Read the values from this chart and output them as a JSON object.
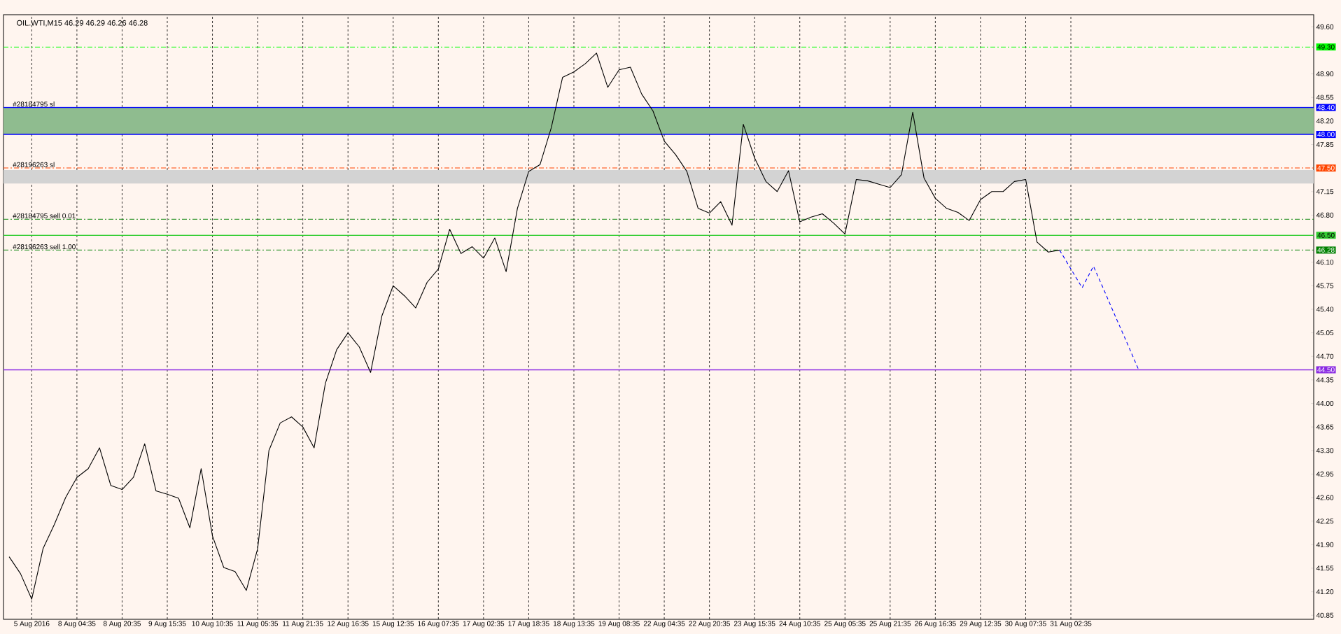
{
  "chart_data": {
    "type": "line",
    "title": "OIL.WTI,M15  46.29 46.29 46.26 46.28",
    "ylim": [
      40.79,
      49.78
    ],
    "grid": "x",
    "categories": [
      null,
      null,
      "5 Aug 2016",
      null,
      null,
      null,
      "8 Aug 04:35",
      null,
      null,
      null,
      "8 Aug 20:35",
      null,
      null,
      null,
      "9 Aug 15:35",
      null,
      null,
      null,
      "10 Aug 10:35",
      null,
      null,
      null,
      "11 Aug 05:35",
      null,
      null,
      null,
      "11 Aug 21:35",
      null,
      null,
      null,
      "12 Aug 16:35",
      null,
      null,
      null,
      "15 Aug 12:35",
      null,
      null,
      null,
      "16 Aug 07:35",
      null,
      null,
      null,
      "17 Aug 02:35",
      null,
      null,
      null,
      "17 Aug 18:35",
      null,
      null,
      null,
      "18 Aug 13:35",
      null,
      null,
      null,
      "19 Aug 08:35",
      null,
      null,
      null,
      "22 Aug 04:35",
      null,
      null,
      null,
      "22 Aug 20:35",
      null,
      null,
      null,
      "23 Aug 15:35",
      null,
      null,
      null,
      "24 Aug 10:35",
      null,
      null,
      null,
      "25 Aug 05:35",
      null,
      null,
      null,
      "25 Aug 21:35",
      null,
      null,
      null,
      "26 Aug 16:35",
      null,
      null,
      null,
      "29 Aug 12:35",
      null,
      null,
      null,
      "30 Aug 07:35",
      null,
      null,
      null,
      "31 Aug 02:35",
      null,
      null,
      null,
      null,
      null,
      null,
      null,
      null,
      null,
      null,
      null,
      null,
      null,
      null,
      null,
      null,
      null,
      null,
      null,
      null,
      null
    ],
    "yticks": [
      {
        "value": 40.85,
        "label": "40.85"
      },
      {
        "value": 41.2,
        "label": "41.20"
      },
      {
        "value": 41.55,
        "label": "41.55"
      },
      {
        "value": 41.9,
        "label": "41.90"
      },
      {
        "value": 42.25,
        "label": "42.25"
      },
      {
        "value": 42.6,
        "label": "42.60"
      },
      {
        "value": 42.95,
        "label": "42.95"
      },
      {
        "value": 43.3,
        "label": "43.30"
      },
      {
        "value": 43.65,
        "label": "43.65"
      },
      {
        "value": 44.0,
        "label": "44.00"
      },
      {
        "value": 44.35,
        "label": "44.35"
      },
      {
        "value": 44.5,
        "label": "44.50"
      },
      {
        "value": 44.7,
        "label": "44.70"
      },
      {
        "value": 45.05,
        "label": "45.05"
      },
      {
        "value": 45.4,
        "label": "45.40"
      },
      {
        "value": 45.75,
        "label": "45.75"
      },
      {
        "value": 46.1,
        "label": "46.10"
      },
      {
        "value": 46.28,
        "label": "46.28"
      },
      {
        "value": 46.5,
        "label": "46.50"
      },
      {
        "value": 46.8,
        "label": "46.80"
      },
      {
        "value": 47.15,
        "label": "47.15"
      },
      {
        "value": 47.5,
        "label": "47.50"
      },
      {
        "value": 47.85,
        "label": "47.85"
      },
      {
        "value": 48.0,
        "label": "48.00"
      },
      {
        "value": 48.2,
        "label": "48.20"
      },
      {
        "value": 48.4,
        "label": "48.40"
      },
      {
        "value": 48.55,
        "label": "48.55"
      },
      {
        "value": 48.9,
        "label": "48.90"
      },
      {
        "value": 49.3,
        "label": "49.30"
      },
      {
        "value": 49.6,
        "label": "49.60"
      }
    ],
    "bands": [
      {
        "axis": "y",
        "from": 48.0,
        "to": 48.4,
        "color": "#8fbc8f"
      },
      {
        "axis": "y",
        "from": 47.27,
        "to": 47.47,
        "color": "#d3d3d3"
      }
    ],
    "ref_lines": [
      {
        "axis": "y",
        "value": 49.3,
        "color": "#00ff00",
        "line_style": "dashed"
      },
      {
        "axis": "y",
        "value": 48.4,
        "label": "#28184795 sl",
        "color": "#0000ff",
        "line_style": "solid"
      },
      {
        "axis": "y",
        "value": 48.0,
        "color": "#0000ff",
        "line_style": "solid"
      },
      {
        "axis": "y",
        "value": 47.5,
        "label": "#28196263 sl",
        "color": "#ff4500",
        "line_style": "dashed"
      },
      {
        "axis": "y",
        "value": 46.74,
        "label": "#28184795 sell 0.01",
        "color": "#008000",
        "line_style": "dashed"
      },
      {
        "axis": "y",
        "value": 46.5,
        "color": "#32cd32",
        "line_style": "solid"
      },
      {
        "axis": "y",
        "value": 46.28,
        "label": "#28196263 sell 1.00",
        "color": "#008000",
        "line_style": "dashed"
      },
      {
        "axis": "y",
        "value": 44.5,
        "color": "#8a2be2",
        "line_style": "solid"
      }
    ],
    "series": [
      {
        "color": "#000000",
        "line_style": "solid",
        "values": [
          41.72,
          41.47,
          41.09,
          41.84,
          42.2,
          42.6,
          42.9,
          43.03,
          43.34,
          42.78,
          42.72,
          42.9,
          43.4,
          42.7,
          42.65,
          42.59,
          42.15,
          43.03,
          42.03,
          41.56,
          41.5,
          41.22,
          41.84,
          43.3,
          43.71,
          43.8,
          43.65,
          43.34,
          44.3,
          44.8,
          45.05,
          44.84,
          44.46,
          45.3,
          45.75,
          45.6,
          45.42,
          45.8,
          46.0,
          46.59,
          46.23,
          46.33,
          46.16,
          46.46,
          45.96,
          46.9,
          47.45,
          47.55,
          48.1,
          48.85,
          48.93,
          49.05,
          49.21,
          48.7,
          48.96,
          49.0,
          48.6,
          48.35,
          47.9,
          47.7,
          47.45,
          46.9,
          46.83,
          47.0,
          46.65,
          48.15,
          47.65,
          47.3,
          47.15,
          47.46,
          46.7,
          46.77,
          46.82,
          46.68,
          46.52,
          47.33,
          47.31,
          47.26,
          47.21,
          47.4,
          48.33,
          47.35,
          47.05,
          46.9,
          46.84,
          46.72,
          47.03,
          47.15,
          47.15,
          47.3,
          47.33,
          46.4,
          46.25,
          46.28,
          null,
          null,
          null,
          null,
          null,
          null,
          null,
          null,
          null,
          null,
          null,
          null,
          null,
          null,
          null,
          null,
          null,
          null,
          null,
          null,
          null,
          null
        ]
      },
      {
        "color": "#0000ff",
        "line_style": "dashed",
        "values": [
          null,
          null,
          null,
          null,
          null,
          null,
          null,
          null,
          null,
          null,
          null,
          null,
          null,
          null,
          null,
          null,
          null,
          null,
          null,
          null,
          null,
          null,
          null,
          null,
          null,
          null,
          null,
          null,
          null,
          null,
          null,
          null,
          null,
          null,
          null,
          null,
          null,
          null,
          null,
          null,
          null,
          null,
          null,
          null,
          null,
          null,
          null,
          null,
          null,
          null,
          null,
          null,
          null,
          null,
          null,
          null,
          null,
          null,
          null,
          null,
          null,
          null,
          null,
          null,
          null,
          null,
          null,
          null,
          null,
          null,
          null,
          null,
          null,
          null,
          null,
          null,
          null,
          null,
          null,
          null,
          null,
          null,
          null,
          null,
          null,
          null,
          null,
          null,
          null,
          null,
          null,
          null,
          null,
          46.28,
          46.0,
          45.72,
          46.04,
          45.66,
          45.27,
          44.89,
          44.5,
          null,
          null,
          null,
          null,
          null,
          null,
          null,
          null,
          null,
          null,
          null,
          null,
          null,
          null,
          null
        ]
      }
    ]
  }
}
